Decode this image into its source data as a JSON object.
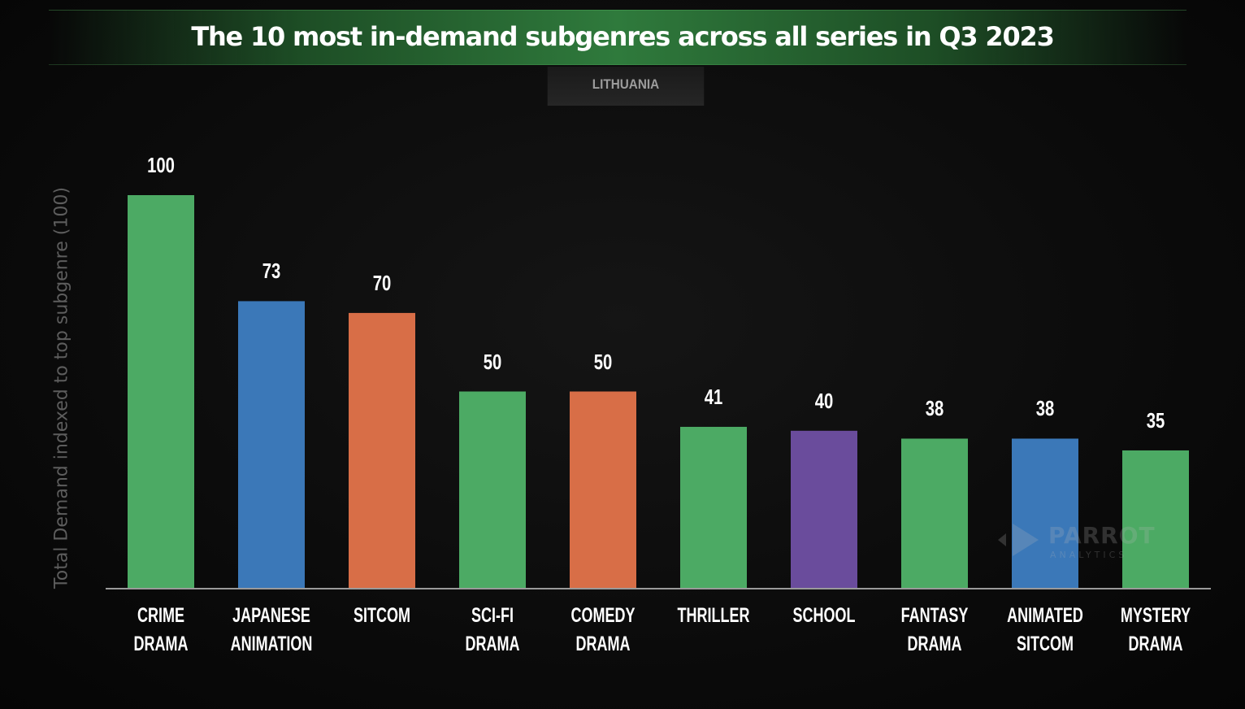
{
  "header": {
    "title": "The 10 most in-demand subgenres across all series in Q3 2023",
    "region": "LITHUANIA"
  },
  "watermark": {
    "name": "PARROT",
    "sub": "ANALYTICS"
  },
  "colors": {
    "green": "#4caa64",
    "blue": "#3b78b8",
    "orange": "#d86e47",
    "purple": "#6a4c9c",
    "axis": "#9a9a9a"
  },
  "chart_data": {
    "type": "bar",
    "title": "The 10 most in-demand subgenres across all series in Q3 2023",
    "subtitle": "LITHUANIA",
    "xlabel": "",
    "ylabel": "Total Demand indexed to top subgenre (100)",
    "ylim": [
      0,
      100
    ],
    "grid": false,
    "categories": [
      "CRIME DRAMA",
      "JAPANESE\nANIMATION",
      "SITCOM",
      "SCI-FI DRAMA",
      "COMEDY\nDRAMA",
      "THRILLER",
      "SCHOOL",
      "FANTASY\nDRAMA",
      "ANIMATED\nSITCOM",
      "MYSTERY\nDRAMA"
    ],
    "values": [
      100,
      73,
      70,
      50,
      50,
      41,
      40,
      38,
      38,
      35
    ],
    "bar_colors": [
      "#4caa64",
      "#3b78b8",
      "#d86e47",
      "#4caa64",
      "#d86e47",
      "#4caa64",
      "#6a4c9c",
      "#4caa64",
      "#3b78b8",
      "#4caa64"
    ],
    "value_labels": [
      "100",
      "73",
      "70",
      "50",
      "50",
      "41",
      "40",
      "38",
      "38",
      "35"
    ]
  }
}
